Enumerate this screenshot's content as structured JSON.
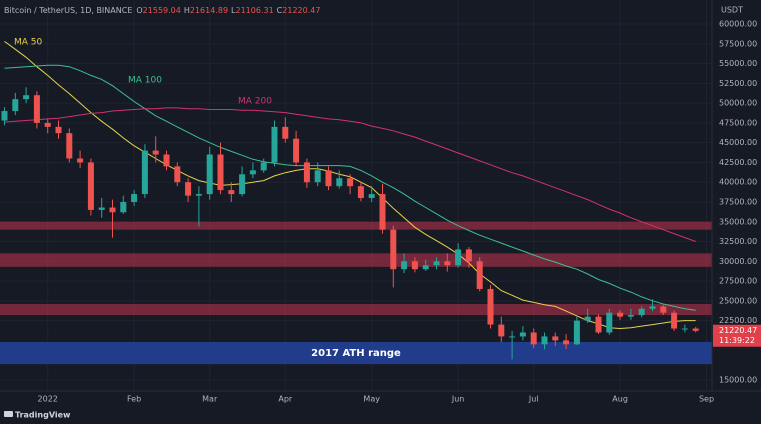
{
  "chart_data": {
    "type": "candlestick",
    "symbol": "Bitcoin / TetherUS, 1D, BINANCE",
    "ohlc_legend": [
      {
        "label": "O",
        "value": 21559.04
      },
      {
        "label": "H",
        "value": 21614.89
      },
      {
        "label": "L",
        "value": 21106.31
      },
      {
        "label": "C",
        "value": 21220.47
      }
    ],
    "currency": "USDT",
    "brand": "TradingView",
    "up_color": "#26a69a",
    "down_color": "#ef5350",
    "categories": [
      null,
      null,
      null,
      null,
      "2022",
      null,
      null,
      null,
      null,
      null,
      null,
      null,
      "Feb",
      null,
      null,
      null,
      null,
      null,
      null,
      "Mar",
      null,
      null,
      null,
      null,
      null,
      null,
      "Apr",
      null,
      null,
      null,
      null,
      null,
      null,
      null,
      "May",
      null,
      null,
      null,
      null,
      null,
      null,
      null,
      "Jun",
      null,
      null,
      null,
      null,
      null,
      null,
      "Jul",
      null,
      null,
      null,
      null,
      null,
      null,
      null,
      "Aug",
      null,
      null,
      null,
      null,
      null,
      null,
      null,
      "Sep"
    ],
    "open": [
      47800,
      49000,
      50500,
      51000,
      47500,
      47000,
      46200,
      43000,
      42500,
      36500,
      36800,
      36200,
      37500,
      38500,
      44000,
      43500,
      42000,
      40000,
      38300,
      38500,
      43500,
      39000,
      38500,
      41000,
      41500,
      42500,
      47000,
      45500,
      42500,
      40000,
      41500,
      39500,
      40500,
      39500,
      38000,
      38500,
      34000,
      29000,
      30000,
      29000,
      29500,
      30000,
      29500,
      31500,
      30000,
      26500,
      22000,
      20500,
      20500,
      21000,
      19500,
      20500,
      20000,
      19500,
      22500,
      23000,
      21000,
      23500,
      23000,
      23200,
      24000,
      24300,
      23500,
      21500,
      21500,
      null
    ],
    "high": [
      49500,
      51300,
      52000,
      51500,
      48000,
      47800,
      46800,
      44000,
      43000,
      38000,
      37800,
      38300,
      39000,
      44800,
      45800,
      44000,
      42500,
      40500,
      39500,
      44500,
      45000,
      40000,
      42000,
      42500,
      43000,
      47800,
      48200,
      46500,
      43000,
      42500,
      42000,
      41500,
      41000,
      40000,
      39500,
      39800,
      34500,
      31000,
      30500,
      30200,
      30500,
      31000,
      32300,
      31800,
      30500,
      27000,
      23000,
      21200,
      21800,
      21500,
      21000,
      21000,
      20800,
      23000,
      24000,
      23300,
      24000,
      23800,
      24000,
      24300,
      25200,
      24500,
      23800,
      22000,
      21700,
      null
    ],
    "low": [
      47200,
      48500,
      50000,
      46800,
      46200,
      45500,
      42500,
      41800,
      35800,
      35500,
      33000,
      36000,
      37000,
      38000,
      42500,
      41500,
      39500,
      37500,
      34400,
      37800,
      38500,
      37500,
      38200,
      40500,
      41200,
      42000,
      45000,
      42000,
      39300,
      39500,
      39000,
      39200,
      38500,
      37600,
      37500,
      33500,
      26700,
      28500,
      28600,
      28800,
      29000,
      28700,
      29200,
      29200,
      26200,
      21500,
      19800,
      17600,
      20000,
      19000,
      18900,
      19300,
      18900,
      19400,
      22200,
      20800,
      20700,
      22600,
      22600,
      22900,
      23700,
      23200,
      21200,
      21000,
      21000,
      null
    ],
    "close": [
      49000,
      50500,
      51000,
      47500,
      47000,
      46200,
      43000,
      42500,
      36500,
      36800,
      36200,
      37500,
      38500,
      44000,
      43500,
      42000,
      40000,
      38300,
      38500,
      43500,
      39000,
      38500,
      41000,
      41500,
      42500,
      47000,
      45500,
      42500,
      40000,
      41500,
      39500,
      40500,
      39500,
      38000,
      38500,
      34000,
      29000,
      30000,
      29000,
      29500,
      30000,
      29500,
      31500,
      30000,
      26500,
      22000,
      20500,
      20500,
      21000,
      19500,
      20500,
      20000,
      19500,
      22500,
      23000,
      21000,
      23500,
      23000,
      23200,
      24000,
      24300,
      23500,
      21500,
      21500,
      21200,
      null
    ],
    "series": [
      {
        "name": "MA 50",
        "color": "#e6d34a",
        "values": [
          57800,
          56800,
          55800,
          54600,
          53500,
          52300,
          51200,
          50000,
          48800,
          47700,
          46700,
          45600,
          44600,
          43800,
          43000,
          42200,
          41500,
          40800,
          40200,
          39900,
          39600,
          39700,
          39800,
          40000,
          40200,
          40800,
          41200,
          41500,
          41700,
          41700,
          41400,
          41000,
          40700,
          40000,
          39300,
          38000,
          36700,
          35500,
          34300,
          33400,
          32600,
          31800,
          30900,
          29800,
          28400,
          27400,
          26300,
          25700,
          25100,
          24800,
          24500,
          24300,
          23700,
          23100,
          22500,
          22100,
          21600,
          21500,
          21600,
          21800,
          22000,
          22200,
          22400,
          22500,
          22500,
          null
        ]
      },
      {
        "name": "MA 100",
        "color": "#3cc08f",
        "values": [
          54400,
          54500,
          54600,
          54700,
          54800,
          54800,
          54600,
          54100,
          53500,
          53000,
          52200,
          51200,
          50200,
          49300,
          48400,
          47700,
          47000,
          46300,
          45600,
          45000,
          44400,
          43900,
          43400,
          42900,
          42600,
          42400,
          42200,
          42100,
          42100,
          42100,
          42100,
          42100,
          42000,
          41500,
          40800,
          40000,
          39300,
          38500,
          37600,
          36800,
          36000,
          35200,
          34500,
          33900,
          33300,
          32800,
          32300,
          31800,
          31300,
          30800,
          30300,
          29900,
          29400,
          29000,
          28400,
          27700,
          27200,
          26600,
          26100,
          25500,
          25000,
          24600,
          24300,
          24000,
          23800,
          null
        ]
      },
      {
        "name": "MA 200",
        "color": "#d2336b",
        "values": [
          47600,
          47700,
          47800,
          47900,
          48000,
          48100,
          48300,
          48500,
          48700,
          48800,
          49000,
          49100,
          49200,
          49300,
          49300,
          49400,
          49400,
          49300,
          49300,
          49200,
          49200,
          49200,
          49100,
          49100,
          49000,
          48900,
          48800,
          48600,
          48400,
          48200,
          48000,
          47900,
          47700,
          47500,
          47100,
          46800,
          46500,
          46100,
          45700,
          45200,
          44700,
          44200,
          43700,
          43200,
          42700,
          42200,
          41700,
          41200,
          40800,
          40300,
          39800,
          39300,
          38800,
          38300,
          37800,
          37200,
          36600,
          36100,
          35500,
          35000,
          34500,
          34000,
          33500,
          33000,
          32500,
          null
        ]
      }
    ],
    "zones": [
      {
        "low": 34000,
        "high": 35000,
        "color": "rgba(196,52,78,0.55)"
      },
      {
        "low": 29300,
        "high": 31000,
        "color": "rgba(196,52,78,0.55)"
      },
      {
        "low": 23200,
        "high": 24600,
        "color": "rgba(196,52,78,0.55)"
      },
      {
        "low": 17000,
        "high": 19800,
        "color": "rgba(33,64,150,0.9)",
        "label": "2017 ATH range"
      }
    ],
    "ylim": [
      13600,
      63040
    ],
    "yticks": [
      {
        "value": 15000,
        "label": "15000.00"
      },
      {
        "value": 22500,
        "label": "22500.00"
      },
      {
        "value": 25000,
        "label": "25000.00"
      },
      {
        "value": 27500,
        "label": "27500.00"
      },
      {
        "value": 30000,
        "label": "30000.00"
      },
      {
        "value": 32500,
        "label": "32500.00"
      },
      {
        "value": 35000,
        "label": "35000.00"
      },
      {
        "value": 37500,
        "label": "37500.00"
      },
      {
        "value": 40000,
        "label": "40000.00"
      },
      {
        "value": 42500,
        "label": "42500.00"
      },
      {
        "value": 45000,
        "label": "45000.00"
      },
      {
        "value": 47500,
        "label": "47500.00"
      },
      {
        "value": 50000,
        "label": "50000.00"
      },
      {
        "value": 52500,
        "label": "52500.00"
      },
      {
        "value": 55000,
        "label": "55000.00"
      },
      {
        "value": 57500,
        "label": "57500.00"
      },
      {
        "value": 60000,
        "label": "60000.00"
      }
    ],
    "price_tag": {
      "value": 21220.47,
      "label": "21220.47",
      "color": "#e0404a"
    },
    "countdown": "11:39:22",
    "grid": true
  }
}
